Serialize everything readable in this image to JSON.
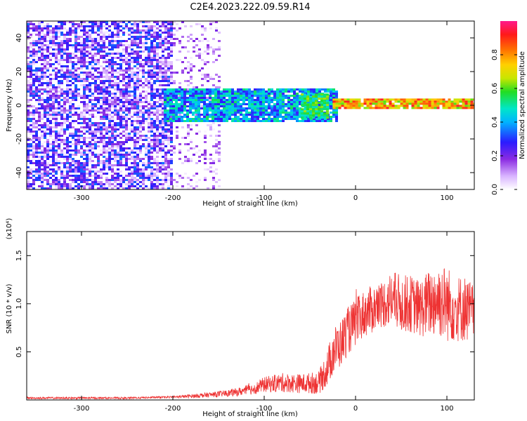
{
  "title": "C2E4.2023.222.09.59.R14",
  "colors": {
    "snr_line": "#ee3333",
    "axis": "#000000"
  },
  "chart_data": [
    {
      "type": "heatmap",
      "id": "spectrogram",
      "xlabel": "Height of straight line (km)",
      "ylabel": "Frequency (Hz)",
      "xlim": [
        -360,
        130
      ],
      "ylim": [
        -50,
        50
      ],
      "xticks": [
        -300,
        -200,
        -100,
        0,
        100
      ],
      "xtick_labels": [
        "-300",
        "-200",
        "-100",
        "0",
        "100"
      ],
      "yticks": [
        -40,
        -20,
        0,
        20,
        40
      ],
      "ytick_labels": [
        "-40",
        "-20",
        "0",
        "20",
        "40"
      ],
      "colorbar": {
        "label": "Normalized spectral amplitude",
        "range": [
          0,
          1
        ],
        "ticks": [
          0.0,
          0.2,
          0.4,
          0.6,
          0.8
        ],
        "tick_labels": [
          "0.0",
          "0.2",
          "0.4",
          "0.6",
          "0.8"
        ],
        "colormap": "rainbow"
      },
      "regions": [
        {
          "x_range": [
            -360,
            -200
          ],
          "freq_range": [
            -50,
            50
          ],
          "amplitude": [
            0.0,
            0.35
          ],
          "density": 0.75
        },
        {
          "x_range": [
            -200,
            -150
          ],
          "freq_range": [
            -50,
            50
          ],
          "amplitude": [
            0.0,
            0.2
          ],
          "density": 0.25
        },
        {
          "x_range": [
            -210,
            -20
          ],
          "freq_range": [
            -10,
            10
          ],
          "amplitude": [
            0.25,
            0.55
          ]
        },
        {
          "x_range": [
            -60,
            -30
          ],
          "freq_range": [
            -7,
            7
          ],
          "amplitude": [
            0.45,
            0.65
          ]
        },
        {
          "x_range": [
            -25,
            130
          ],
          "freq_range": [
            -2,
            4
          ],
          "amplitude": [
            0.6,
            0.95
          ]
        }
      ]
    },
    {
      "type": "line",
      "id": "snr",
      "xlabel": "Height of straight line (km)",
      "ylabel": "SNR (10 * v/v)",
      "y_multiplier": "(x10⁴)",
      "xlim": [
        -360,
        130
      ],
      "ylim": [
        0,
        1.75
      ],
      "xticks": [
        -300,
        -200,
        -100,
        0,
        100
      ],
      "xtick_labels": [
        "-300",
        "-200",
        "-100",
        "0",
        "100"
      ],
      "yticks": [
        0.5,
        1.0,
        1.5
      ],
      "ytick_labels": [
        "0.5",
        "1.0",
        "1.5"
      ],
      "series": [
        {
          "x": [
            -360,
            -300,
            -250,
            -200,
            -180,
            -150,
            -130,
            -110,
            -100,
            -80,
            -60,
            -40,
            -30,
            -25,
            -20,
            -15,
            -10,
            -5,
            0,
            10,
            20,
            30,
            40,
            50,
            60,
            70,
            80,
            90,
            100,
            110,
            120,
            130
          ],
          "values": [
            0.02,
            0.02,
            0.02,
            0.03,
            0.04,
            0.06,
            0.08,
            0.12,
            0.16,
            0.18,
            0.17,
            0.18,
            0.35,
            0.5,
            0.55,
            0.6,
            0.7,
            0.75,
            0.8,
            0.9,
            0.95,
            1.0,
            1.05,
            1.0,
            1.0,
            0.95,
            1.0,
            1.05,
            1.0,
            0.95,
            0.95,
            0.9
          ],
          "noise": [
            0.01,
            0.01,
            0.01,
            0.01,
            0.02,
            0.03,
            0.04,
            0.06,
            0.08,
            0.1,
            0.1,
            0.12,
            0.2,
            0.25,
            0.25,
            0.25,
            0.25,
            0.25,
            0.25,
            0.25,
            0.25,
            0.25,
            0.3,
            0.3,
            0.3,
            0.3,
            0.35,
            0.4,
            0.4,
            0.35,
            0.35,
            0.3
          ]
        }
      ]
    }
  ]
}
